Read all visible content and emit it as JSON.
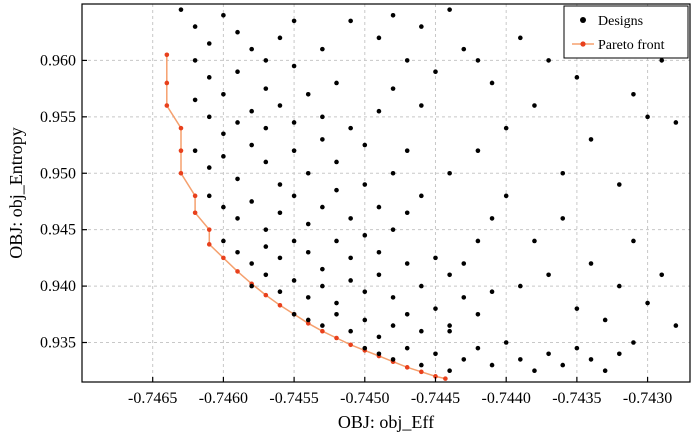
{
  "chart_data": {
    "type": "scatter",
    "xlabel": "OBJ: obj_Eff",
    "ylabel": "OBJ: obj_Entropy",
    "xlim": [
      -0.747,
      -0.7427
    ],
    "ylim": [
      0.9315,
      0.965
    ],
    "x_ticks": [
      -0.7465,
      -0.746,
      -0.7455,
      -0.745,
      -0.7445,
      -0.744,
      -0.7435,
      -0.743
    ],
    "x_tick_labels": [
      "-0.7465",
      "-0.7460",
      "-0.7455",
      "-0.7450",
      "-0.7445",
      "-0.7440",
      "-0.7435",
      "-0.7430"
    ],
    "y_ticks": [
      0.935,
      0.94,
      0.945,
      0.95,
      0.955,
      0.96
    ],
    "y_tick_labels": [
      "0.935",
      "0.940",
      "0.945",
      "0.950",
      "0.955",
      "0.960"
    ],
    "grid": true,
    "legend": {
      "position": "top-right",
      "entries": [
        "Designs",
        "Pareto front"
      ]
    },
    "colors": {
      "designs": "#000000",
      "pareto_line": "#f5a06e",
      "pareto_marker": "#e8401c"
    },
    "series": [
      {
        "name": "Designs",
        "kind": "scatter",
        "points": [
          [
            -0.7463,
            0.9645
          ],
          [
            -0.7462,
            0.963
          ],
          [
            -0.7461,
            0.9615
          ],
          [
            -0.746,
            0.964
          ],
          [
            -0.7459,
            0.9625
          ],
          [
            -0.7462,
            0.96
          ],
          [
            -0.7461,
            0.9585
          ],
          [
            -0.746,
            0.957
          ],
          [
            -0.7459,
            0.959
          ],
          [
            -0.7458,
            0.961
          ],
          [
            -0.7457,
            0.96
          ],
          [
            -0.7456,
            0.962
          ],
          [
            -0.7455,
            0.9595
          ],
          [
            -0.7457,
            0.9575
          ],
          [
            -0.7458,
            0.9555
          ],
          [
            -0.7462,
            0.9565
          ],
          [
            -0.7461,
            0.955
          ],
          [
            -0.746,
            0.9535
          ],
          [
            -0.7459,
            0.9545
          ],
          [
            -0.7457,
            0.954
          ],
          [
            -0.7456,
            0.956
          ],
          [
            -0.7455,
            0.9545
          ],
          [
            -0.7454,
            0.957
          ],
          [
            -0.7453,
            0.955
          ],
          [
            -0.7452,
            0.958
          ],
          [
            -0.7462,
            0.952
          ],
          [
            -0.7461,
            0.9505
          ],
          [
            -0.746,
            0.9515
          ],
          [
            -0.7459,
            0.9495
          ],
          [
            -0.7458,
            0.9525
          ],
          [
            -0.7457,
            0.951
          ],
          [
            -0.7456,
            0.949
          ],
          [
            -0.7455,
            0.952
          ],
          [
            -0.7454,
            0.95
          ],
          [
            -0.7453,
            0.953
          ],
          [
            -0.7452,
            0.951
          ],
          [
            -0.7451,
            0.954
          ],
          [
            -0.745,
            0.9525
          ],
          [
            -0.7449,
            0.9555
          ],
          [
            -0.7448,
            0.9575
          ],
          [
            -0.7461,
            0.948
          ],
          [
            -0.746,
            0.947
          ],
          [
            -0.7459,
            0.946
          ],
          [
            -0.7458,
            0.9475
          ],
          [
            -0.7457,
            0.945
          ],
          [
            -0.7456,
            0.9465
          ],
          [
            -0.7455,
            0.948
          ],
          [
            -0.7454,
            0.9455
          ],
          [
            -0.7453,
            0.947
          ],
          [
            -0.7452,
            0.9485
          ],
          [
            -0.7451,
            0.946
          ],
          [
            -0.745,
            0.949
          ],
          [
            -0.7449,
            0.947
          ],
          [
            -0.7448,
            0.95
          ],
          [
            -0.7447,
            0.952
          ],
          [
            -0.746,
            0.944
          ],
          [
            -0.7459,
            0.943
          ],
          [
            -0.7458,
            0.942
          ],
          [
            -0.7457,
            0.9435
          ],
          [
            -0.7456,
            0.9425
          ],
          [
            -0.7455,
            0.944
          ],
          [
            -0.7454,
            0.943
          ],
          [
            -0.7453,
            0.9415
          ],
          [
            -0.7452,
            0.944
          ],
          [
            -0.7451,
            0.9425
          ],
          [
            -0.745,
            0.9445
          ],
          [
            -0.7449,
            0.943
          ],
          [
            -0.7448,
            0.945
          ],
          [
            -0.7447,
            0.9465
          ],
          [
            -0.7446,
            0.948
          ],
          [
            -0.7458,
            0.94
          ],
          [
            -0.7457,
            0.941
          ],
          [
            -0.7456,
            0.9395
          ],
          [
            -0.7455,
            0.9405
          ],
          [
            -0.7454,
            0.939
          ],
          [
            -0.7453,
            0.94
          ],
          [
            -0.7452,
            0.9385
          ],
          [
            -0.7451,
            0.9405
          ],
          [
            -0.745,
            0.9395
          ],
          [
            -0.7449,
            0.941
          ],
          [
            -0.7448,
            0.939
          ],
          [
            -0.7447,
            0.942
          ],
          [
            -0.7446,
            0.94
          ],
          [
            -0.7445,
            0.9425
          ],
          [
            -0.7444,
            0.941
          ],
          [
            -0.7455,
            0.9375
          ],
          [
            -0.7454,
            0.937
          ],
          [
            -0.7453,
            0.9365
          ],
          [
            -0.7452,
            0.9375
          ],
          [
            -0.7451,
            0.936
          ],
          [
            -0.745,
            0.937
          ],
          [
            -0.7449,
            0.9355
          ],
          [
            -0.7448,
            0.9365
          ],
          [
            -0.7447,
            0.9375
          ],
          [
            -0.7446,
            0.936
          ],
          [
            -0.7445,
            0.938
          ],
          [
            -0.7444,
            0.9365
          ],
          [
            -0.7443,
            0.939
          ],
          [
            -0.7442,
            0.9375
          ],
          [
            -0.7441,
            0.9395
          ],
          [
            -0.745,
            0.9345
          ],
          [
            -0.7449,
            0.934
          ],
          [
            -0.7448,
            0.9335
          ],
          [
            -0.7447,
            0.9345
          ],
          [
            -0.7446,
            0.933
          ],
          [
            -0.7445,
            0.934
          ],
          [
            -0.7444,
            0.9325
          ],
          [
            -0.7443,
            0.9335
          ],
          [
            -0.7442,
            0.9345
          ],
          [
            -0.7441,
            0.933
          ],
          [
            -0.744,
            0.935
          ],
          [
            -0.7439,
            0.9335
          ],
          [
            -0.7438,
            0.9325
          ],
          [
            -0.7437,
            0.934
          ],
          [
            -0.7436,
            0.933
          ],
          [
            -0.7435,
            0.9345
          ],
          [
            -0.7434,
            0.9335
          ],
          [
            -0.7433,
            0.9325
          ],
          [
            -0.7432,
            0.934
          ],
          [
            -0.7431,
            0.935
          ],
          [
            -0.7444,
            0.936
          ],
          [
            -0.7443,
            0.942
          ],
          [
            -0.7442,
            0.944
          ],
          [
            -0.7441,
            0.946
          ],
          [
            -0.744,
            0.948
          ],
          [
            -0.7439,
            0.94
          ],
          [
            -0.7438,
            0.944
          ],
          [
            -0.7437,
            0.941
          ],
          [
            -0.7436,
            0.946
          ],
          [
            -0.7435,
            0.938
          ],
          [
            -0.7434,
            0.942
          ],
          [
            -0.7433,
            0.937
          ],
          [
            -0.7432,
            0.94
          ],
          [
            -0.7431,
            0.944
          ],
          [
            -0.743,
            0.9385
          ],
          [
            -0.7429,
            0.941
          ],
          [
            -0.7428,
            0.9365
          ],
          [
            -0.7444,
            0.95
          ],
          [
            -0.7442,
            0.952
          ],
          [
            -0.744,
            0.954
          ],
          [
            -0.7438,
            0.956
          ],
          [
            -0.7436,
            0.95
          ],
          [
            -0.7434,
            0.953
          ],
          [
            -0.7432,
            0.949
          ],
          [
            -0.743,
            0.955
          ],
          [
            -0.7446,
            0.956
          ],
          [
            -0.7445,
            0.959
          ],
          [
            -0.7443,
            0.961
          ],
          [
            -0.7441,
            0.958
          ],
          [
            -0.7439,
            0.962
          ],
          [
            -0.7437,
            0.96
          ],
          [
            -0.7435,
            0.9585
          ],
          [
            -0.7433,
            0.963
          ],
          [
            -0.7431,
            0.957
          ],
          [
            -0.7429,
            0.96
          ],
          [
            -0.7428,
            0.9545
          ],
          [
            -0.7447,
            0.96
          ],
          [
            -0.7449,
            0.962
          ],
          [
            -0.7451,
            0.9635
          ],
          [
            -0.7453,
            0.961
          ],
          [
            -0.7455,
            0.9635
          ],
          [
            -0.7448,
            0.964
          ],
          [
            -0.7446,
            0.963
          ],
          [
            -0.7444,
            0.9645
          ],
          [
            -0.7442,
            0.96
          ]
        ]
      },
      {
        "name": "Pareto front",
        "kind": "line-markers",
        "points": [
          [
            -0.7464,
            0.9605
          ],
          [
            -0.7464,
            0.958
          ],
          [
            -0.7464,
            0.956
          ],
          [
            -0.7463,
            0.954
          ],
          [
            -0.7463,
            0.952
          ],
          [
            -0.7463,
            0.95
          ],
          [
            -0.7462,
            0.948
          ],
          [
            -0.7462,
            0.9465
          ],
          [
            -0.7461,
            0.945
          ],
          [
            -0.7461,
            0.9437
          ],
          [
            -0.746,
            0.9425
          ],
          [
            -0.7459,
            0.9413
          ],
          [
            -0.7458,
            0.9402
          ],
          [
            -0.7457,
            0.9392
          ],
          [
            -0.7456,
            0.9383
          ],
          [
            -0.7455,
            0.9375
          ],
          [
            -0.7454,
            0.9367
          ],
          [
            -0.7453,
            0.936
          ],
          [
            -0.7452,
            0.9354
          ],
          [
            -0.7451,
            0.9348
          ],
          [
            -0.745,
            0.9343
          ],
          [
            -0.7449,
            0.9338
          ],
          [
            -0.7448,
            0.9333
          ],
          [
            -0.7447,
            0.9328
          ],
          [
            -0.7446,
            0.9324
          ],
          [
            -0.7445,
            0.932
          ],
          [
            -0.74443,
            0.9318
          ]
        ]
      }
    ]
  }
}
